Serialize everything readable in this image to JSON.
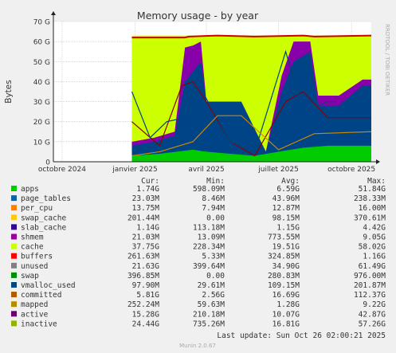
{
  "chart_data": {
    "type": "area",
    "title": "Memory usage - by year",
    "ylabel": "Bytes",
    "xlabel": "",
    "side_label": "RRDTOOL / TOBI OETIKER",
    "ylim": [
      0,
      70
    ],
    "y_unit": "G",
    "y_ticks": [
      "0",
      "10 G",
      "20 G",
      "30 G",
      "40 G",
      "50 G",
      "60 G",
      "70 G"
    ],
    "y_tick_values": [
      0,
      10,
      20,
      30,
      40,
      50,
      60,
      70
    ],
    "x_range": [
      "2024-09-20",
      "2025-10-26"
    ],
    "x_ticks": [
      {
        "label": "octobre 2024",
        "date": "2024-10-01"
      },
      {
        "label": "janvier 2025",
        "date": "2025-01-01"
      },
      {
        "label": "avril 2025",
        "date": "2025-04-01"
      },
      {
        "label": "juillet 2025",
        "date": "2025-07-01"
      },
      {
        "label": "octobre 2025",
        "date": "2025-10-01"
      }
    ],
    "grid": true,
    "legend_placement": "bottom",
    "series": [
      {
        "name": "unused",
        "color": "#ccff00",
        "x": [
          "2024-12-28",
          "2025-01-15",
          "2025-03-01",
          "2025-04-15",
          "2025-06-01",
          "2025-07-15",
          "2025-09-01",
          "2025-10-26"
        ],
        "values": [
          63,
          63,
          63,
          63,
          63,
          63,
          63,
          63
        ]
      },
      {
        "name": "buffers",
        "color": "#8800aa",
        "x": [
          "2024-12-28",
          "2025-01-25",
          "2025-02-20",
          "2025-03-05",
          "2025-03-15",
          "2025-03-25",
          "2025-04-01",
          "2025-05-15",
          "2025-06-15",
          "2025-07-05",
          "2025-07-20",
          "2025-08-10",
          "2025-08-20",
          "2025-09-15",
          "2025-10-15",
          "2025-10-26"
        ],
        "values": [
          10,
          12,
          15,
          57,
          58,
          60,
          30,
          30,
          5,
          43,
          60,
          60,
          33,
          33,
          41,
          41
        ]
      },
      {
        "name": "cache",
        "color": "#004488",
        "x": [
          "2024-12-28",
          "2025-01-25",
          "2025-02-20",
          "2025-03-05",
          "2025-03-15",
          "2025-03-25",
          "2025-04-01",
          "2025-05-15",
          "2025-06-15",
          "2025-07-05",
          "2025-07-20",
          "2025-08-10",
          "2025-08-20",
          "2025-09-15",
          "2025-10-15",
          "2025-10-26"
        ],
        "values": [
          8,
          10,
          13,
          40,
          45,
          50,
          30,
          30,
          5,
          35,
          50,
          55,
          28,
          28,
          38,
          38
        ]
      },
      {
        "name": "apps",
        "color": "#00cc00",
        "x": [
          "2024-12-28",
          "2025-02-01",
          "2025-03-15",
          "2025-04-01",
          "2025-05-01",
          "2025-06-01",
          "2025-07-01",
          "2025-08-01",
          "2025-09-01",
          "2025-10-26"
        ],
        "values": [
          3,
          4,
          6,
          5,
          4,
          3,
          5,
          7,
          8,
          8
        ]
      },
      {
        "name": "swap",
        "color": "#cc0000",
        "x": [
          "2024-12-28",
          "2025-03-05",
          "2025-03-10",
          "2025-04-15",
          "2025-06-01",
          "2025-08-01",
          "2025-08-15",
          "2025-10-26"
        ],
        "values": [
          62,
          62,
          62.5,
          63,
          62.5,
          63,
          62.5,
          63
        ]
      },
      {
        "name": "inactive",
        "color": "#880000",
        "x": [
          "2024-12-28",
          "2025-02-01",
          "2025-03-01",
          "2025-03-15",
          "2025-04-01",
          "2025-05-01",
          "2025-06-01",
          "2025-07-10",
          "2025-08-01",
          "2025-09-01",
          "2025-10-26"
        ],
        "values": [
          20,
          8,
          38,
          40,
          30,
          10,
          3,
          30,
          35,
          22,
          22
        ]
      },
      {
        "name": "committed",
        "color": "#00447a",
        "x": [
          "2024-12-28",
          "2025-01-20",
          "2025-02-10",
          "2025-03-05",
          "2025-03-20",
          "2025-05-01",
          "2025-06-01",
          "2025-07-10",
          "2025-08-01",
          "2025-09-01",
          "2025-10-26"
        ],
        "values": [
          35,
          12,
          20,
          22,
          40,
          10,
          5,
          55,
          25,
          30,
          30
        ]
      },
      {
        "name": "active",
        "color": "#cc8800",
        "x": [
          "2024-12-28",
          "2025-02-01",
          "2025-03-15",
          "2025-04-15",
          "2025-05-15",
          "2025-07-01",
          "2025-08-15",
          "2025-10-26"
        ],
        "values": [
          3,
          5,
          10,
          23,
          23,
          6,
          14,
          15
        ]
      }
    ]
  },
  "legend": {
    "headers": {
      "cur": "Cur:",
      "min": "Min:",
      "avg": "Avg:",
      "max": "Max:"
    },
    "rows": [
      {
        "name": "apps",
        "color": "#00cc00",
        "cur": "1.74G",
        "min": "598.09M",
        "avg": "6.59G",
        "max": "51.84G"
      },
      {
        "name": "page_tables",
        "color": "#0066b3",
        "cur": "23.03M",
        "min": "8.46M",
        "avg": "43.96M",
        "max": "238.33M"
      },
      {
        "name": "per_cpu",
        "color": "#ff8000",
        "cur": "13.75M",
        "min": "7.94M",
        "avg": "12.87M",
        "max": "16.00M"
      },
      {
        "name": "swap_cache",
        "color": "#ffcc00",
        "cur": "201.44M",
        "min": "0.00",
        "avg": "98.15M",
        "max": "370.61M"
      },
      {
        "name": "slab_cache",
        "color": "#330099",
        "cur": "1.14G",
        "min": "113.18M",
        "avg": "1.15G",
        "max": "4.42G"
      },
      {
        "name": "shmem",
        "color": "#990099",
        "cur": "21.03M",
        "min": "13.09M",
        "avg": "773.55M",
        "max": "9.05G"
      },
      {
        "name": "cache",
        "color": "#ccff00",
        "cur": "37.75G",
        "min": "228.34M",
        "avg": "19.51G",
        "max": "58.02G"
      },
      {
        "name": "buffers",
        "color": "#ff0000",
        "cur": "261.63M",
        "min": "5.33M",
        "avg": "324.85M",
        "max": "1.16G"
      },
      {
        "name": "unused",
        "color": "#808080",
        "cur": "21.63G",
        "min": "399.64M",
        "avg": "34.90G",
        "max": "61.49G"
      },
      {
        "name": "swap",
        "color": "#008f00",
        "cur": "396.85M",
        "min": "0.00",
        "avg": "280.83M",
        "max": "976.00M"
      },
      {
        "name": "vmalloc_used",
        "color": "#00487d",
        "cur": "97.90M",
        "min": "29.61M",
        "avg": "109.15M",
        "max": "201.87M"
      },
      {
        "name": "committed",
        "color": "#b35a00",
        "cur": "5.81G",
        "min": "2.56G",
        "avg": "16.69G",
        "max": "112.37G"
      },
      {
        "name": "mapped",
        "color": "#b38f00",
        "cur": "252.24M",
        "min": "59.63M",
        "avg": "1.28G",
        "max": "9.22G"
      },
      {
        "name": "active",
        "color": "#6b006b",
        "cur": "15.28G",
        "min": "210.18M",
        "avg": "10.07G",
        "max": "42.87G"
      },
      {
        "name": "inactive",
        "color": "#8fb300",
        "cur": "24.44G",
        "min": "735.26M",
        "avg": "16.81G",
        "max": "57.26G"
      }
    ]
  },
  "footer": {
    "last_update": "Last update: Sun Oct 26 02:00:21 2025",
    "generator": "Munin 2.0.67"
  }
}
